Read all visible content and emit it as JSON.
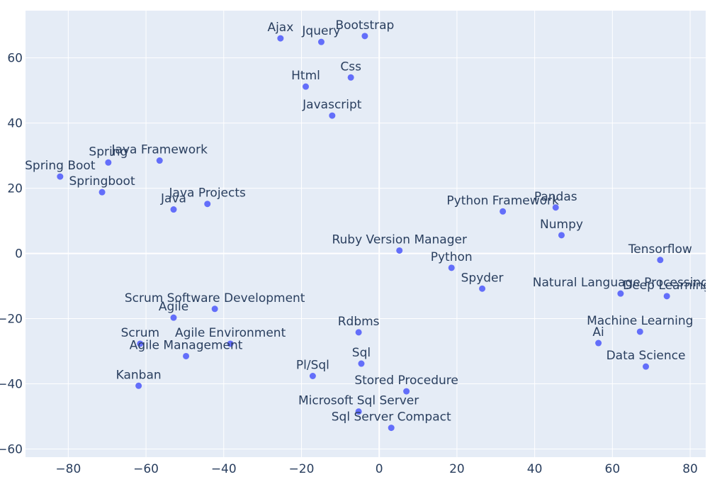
{
  "chart_data": {
    "type": "scatter",
    "title": "",
    "xlabel": "",
    "ylabel": "",
    "xlim": [
      -91,
      84
    ],
    "ylim": [
      -62.5,
      74.5
    ],
    "x_ticks": [
      -80,
      -60,
      -40,
      -20,
      0,
      20,
      40,
      60,
      80
    ],
    "y_ticks": [
      -60,
      -40,
      -20,
      0,
      20,
      40,
      60
    ],
    "grid": true,
    "marker_color": "#636efa",
    "plot_background": "#e5ecf6",
    "text_color": "#2a3f5f",
    "points": [
      {
        "label": "Ajax",
        "x": -25.4,
        "y": 66.0
      },
      {
        "label": "Jquery",
        "x": -14.9,
        "y": 64.9
      },
      {
        "label": "Bootstrap",
        "x": -3.7,
        "y": 66.7
      },
      {
        "label": "Css",
        "x": -7.3,
        "y": 54.0
      },
      {
        "label": "Html",
        "x": -18.9,
        "y": 51.2
      },
      {
        "label": "Javascript",
        "x": -12.1,
        "y": 42.3
      },
      {
        "label": "Spring",
        "x": -69.7,
        "y": 27.9
      },
      {
        "label": "Java Framework",
        "x": -56.5,
        "y": 28.5
      },
      {
        "label": "Spring Boot",
        "x": -82.1,
        "y": 23.6
      },
      {
        "label": "Springboot",
        "x": -71.3,
        "y": 18.8
      },
      {
        "label": "Java",
        "x": -52.9,
        "y": 13.5
      },
      {
        "label": "Java Projects",
        "x": -44.2,
        "y": 15.2
      },
      {
        "label": "Python Framework",
        "x": 31.8,
        "y": 12.9
      },
      {
        "label": "Pandas",
        "x": 45.4,
        "y": 14.1
      },
      {
        "label": "Numpy",
        "x": 46.9,
        "y": 5.6
      },
      {
        "label": "Ruby Version Manager",
        "x": 5.2,
        "y": 0.9
      },
      {
        "label": "Python",
        "x": 18.6,
        "y": -4.4
      },
      {
        "label": "Tensorflow",
        "x": 72.3,
        "y": -2.0
      },
      {
        "label": "Spyder",
        "x": 26.5,
        "y": -10.8
      },
      {
        "label": "Natural Language Processing",
        "x": 62.1,
        "y": -12.3
      },
      {
        "label": "Deep Learning",
        "x": 74.0,
        "y": -13.1
      },
      {
        "label": "Scrum Software Development",
        "x": -42.3,
        "y": -17.0
      },
      {
        "label": "Agile",
        "x": -52.9,
        "y": -19.7
      },
      {
        "label": "Rdbms",
        "x": -5.3,
        "y": -24.2
      },
      {
        "label": "Machine Learning",
        "x": 67.1,
        "y": -24.0
      },
      {
        "label": "Scrum",
        "x": -61.5,
        "y": -27.7
      },
      {
        "label": "Agile Environment",
        "x": -38.3,
        "y": -27.7
      },
      {
        "label": "Ai",
        "x": 56.4,
        "y": -27.5
      },
      {
        "label": "Agile Management",
        "x": -49.7,
        "y": -31.5
      },
      {
        "label": "Sql",
        "x": -4.6,
        "y": -33.8
      },
      {
        "label": "Data Science",
        "x": 68.6,
        "y": -34.7
      },
      {
        "label": "Pl/Sql",
        "x": -17.1,
        "y": -37.6
      },
      {
        "label": "Kanban",
        "x": -61.9,
        "y": -40.6
      },
      {
        "label": "Stored Procedure",
        "x": 7.0,
        "y": -42.3
      },
      {
        "label": "Microsoft Sql Server",
        "x": -5.3,
        "y": -48.5
      },
      {
        "label": "Sql Server Compact",
        "x": 3.1,
        "y": -53.5
      }
    ]
  }
}
